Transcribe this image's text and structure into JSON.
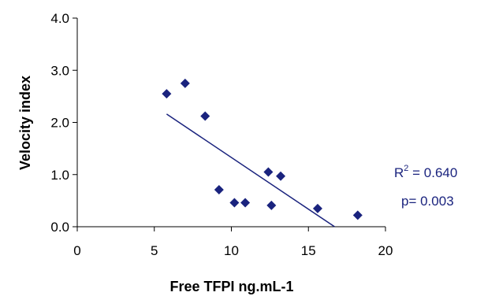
{
  "chart_data": {
    "type": "scatter",
    "xlabel": "Free TFPI ng.mL-1",
    "ylabel": "Velocity index",
    "xlim": [
      0,
      20
    ],
    "ylim": [
      0,
      4
    ],
    "x_ticks": [
      "0",
      "5",
      "10",
      "15",
      "20"
    ],
    "y_ticks": [
      "0.0",
      "1.0",
      "2.0",
      "3.0",
      "4.0"
    ],
    "grid": false,
    "series": [
      {
        "marker": "diamond",
        "color": "#1a237e",
        "points": [
          {
            "x": 5.8,
            "y": 2.55
          },
          {
            "x": 7.0,
            "y": 2.75
          },
          {
            "x": 8.3,
            "y": 2.12
          },
          {
            "x": 9.2,
            "y": 0.71
          },
          {
            "x": 10.2,
            "y": 0.46
          },
          {
            "x": 10.9,
            "y": 0.46
          },
          {
            "x": 12.4,
            "y": 1.05
          },
          {
            "x": 12.6,
            "y": 0.41
          },
          {
            "x": 13.2,
            "y": 0.97
          },
          {
            "x": 15.6,
            "y": 0.35
          },
          {
            "x": 18.2,
            "y": 0.22
          }
        ]
      }
    ],
    "trendline": {
      "type": "linear",
      "color": "#1a237e",
      "from": {
        "x": 5.8,
        "y": 2.16
      },
      "to": {
        "x": 16.7,
        "y": 0.0
      }
    },
    "annotations": {
      "r2_label": "R",
      "r2_sup": "2",
      "r2_value": " = 0.640",
      "p_value": "p= 0.003",
      "color": "#1a237e"
    }
  }
}
